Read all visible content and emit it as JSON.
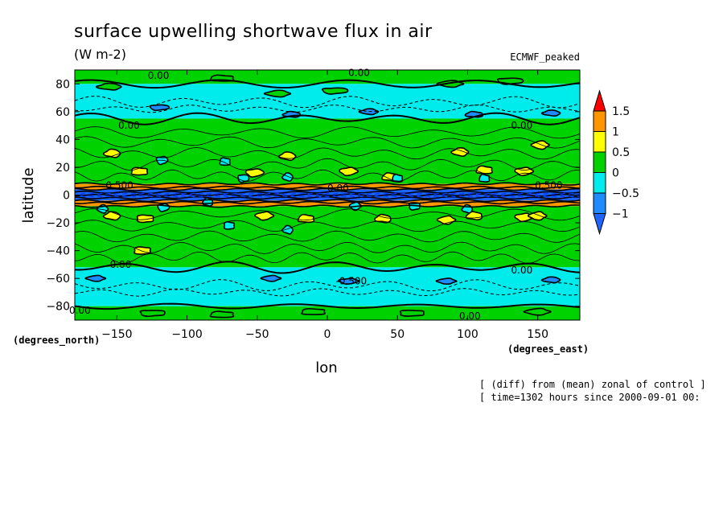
{
  "chart_data": {
    "type": "heatmap",
    "title": "surface upwelling shortwave flux in air",
    "units": "(W m-2)",
    "model_label": "ECMWF_peaked",
    "xlabel": "lon",
    "ylabel": "latitude",
    "x_unit_note": "(degrees_east)",
    "y_unit_note": "(degrees_north)",
    "xlim": [
      -180,
      180
    ],
    "ylim": [
      -90,
      90
    ],
    "x_ticks": [
      -150,
      -100,
      -50,
      0,
      50,
      100,
      150
    ],
    "y_ticks": [
      80,
      60,
      40,
      20,
      0,
      -20,
      -40,
      -60,
      -80
    ],
    "colorbar": {
      "levels": [
        -1,
        -0.5,
        0,
        0.5,
        1,
        1.5
      ],
      "level_labels": [
        "−1",
        "−0.5",
        "0",
        "0.5",
        "1",
        "1.5"
      ],
      "colors": [
        "#1e8cff",
        "#00ecec",
        "#00d200",
        "#ffff00",
        "#ff9600",
        "#ff0000"
      ],
      "under_color": "#1e64ff",
      "over_color": "#ff0000"
    },
    "zonal_bands": [
      {
        "lat": [
          80,
          90
        ],
        "value": "0 to 0.5"
      },
      {
        "lat": [
          55,
          80
        ],
        "value": "-0.5 to 0"
      },
      {
        "lat": [
          8,
          55
        ],
        "value": "0 to 0.5"
      },
      {
        "lat": [
          4,
          8
        ],
        "value": "0.5 to 1.5"
      },
      {
        "lat": [
          -4,
          4
        ],
        "value": "below -1"
      },
      {
        "lat": [
          -8,
          -4
        ],
        "value": "0.5 to 1.5"
      },
      {
        "lat": [
          -52,
          -8
        ],
        "value": "0 to 0.5"
      },
      {
        "lat": [
          -80,
          -52
        ],
        "value": "-0.5 to 0"
      },
      {
        "lat": [
          -90,
          -80
        ],
        "value": "0 to 0.5"
      }
    ],
    "contour_labels": [
      {
        "lon": -128,
        "lat": 86,
        "text": "0.00"
      },
      {
        "lon": 15,
        "lat": 88,
        "text": "0.00"
      },
      {
        "lon": -149,
        "lat": 50,
        "text": "0.00"
      },
      {
        "lon": 131,
        "lat": 50,
        "text": "0.00"
      },
      {
        "lon": -155,
        "lat": -50,
        "text": "0.00"
      },
      {
        "lon": 131,
        "lat": -54,
        "text": "0.00"
      },
      {
        "lon": -184,
        "lat": -83,
        "text": "0.00"
      },
      {
        "lon": 94,
        "lat": -87,
        "text": "0.00"
      },
      {
        "lon": 6,
        "lat": -62,
        "text": "-0.500"
      },
      {
        "lon": -158,
        "lat": 7,
        "text": "0.500"
      },
      {
        "lon": 148,
        "lat": 7,
        "text": "0.500"
      },
      {
        "lon": 0,
        "lat": 5,
        "text": "0.00"
      }
    ]
  },
  "footer": {
    "line1": "[ (diff) from (mean) zonal of control ]",
    "line2": "[ time=1302 hours since 2000-09-01 00:"
  }
}
